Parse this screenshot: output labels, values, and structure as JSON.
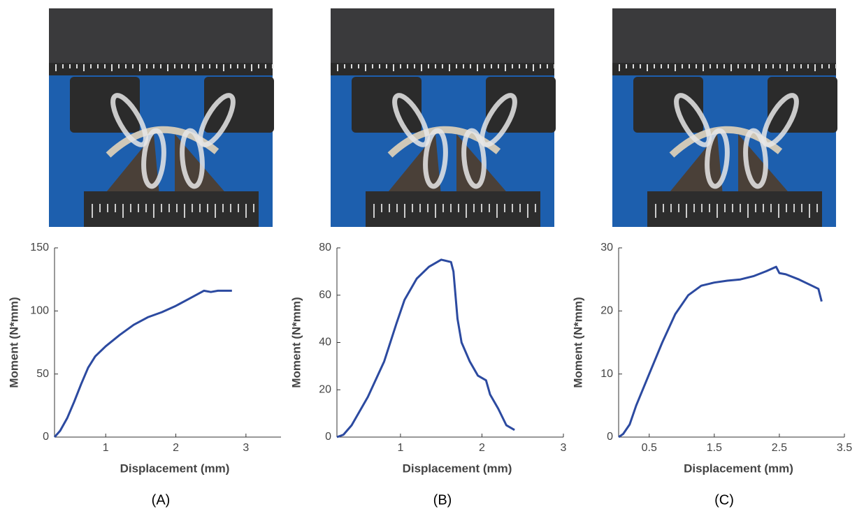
{
  "chart_data": [
    {
      "type": "line",
      "panel_label": "(A)",
      "x_label": "Displacement (mm)",
      "y_label": "Moment (N*mm)",
      "xlim": [
        0.27,
        3.5
      ],
      "ylim": [
        0,
        150
      ],
      "xticks": [
        1,
        2,
        3
      ],
      "yticks": [
        0,
        50,
        100,
        150
      ],
      "series": [
        {
          "color": "#2c4aa0",
          "x": [
            0.27,
            0.35,
            0.45,
            0.55,
            0.65,
            0.75,
            0.85,
            1.0,
            1.2,
            1.4,
            1.6,
            1.8,
            2.0,
            2.2,
            2.4,
            2.5,
            2.6,
            2.8
          ],
          "values": [
            0,
            5,
            15,
            28,
            42,
            55,
            64,
            72,
            81,
            89,
            95,
            99,
            104,
            110,
            116,
            115,
            116,
            116
          ]
        }
      ]
    },
    {
      "type": "line",
      "panel_label": "(B)",
      "x_label": "Displacement (mm)",
      "y_label": "Moment (N*mm)",
      "xlim": [
        0.22,
        3
      ],
      "ylim": [
        0,
        80
      ],
      "xticks": [
        1,
        2,
        3
      ],
      "yticks": [
        0,
        20,
        40,
        60,
        80
      ],
      "series": [
        {
          "color": "#2c4aa0",
          "x": [
            0.22,
            0.3,
            0.4,
            0.6,
            0.8,
            0.95,
            1.05,
            1.2,
            1.35,
            1.5,
            1.62,
            1.65,
            1.7,
            1.75,
            1.85,
            1.95,
            2.05,
            2.1,
            2.2,
            2.3,
            2.4
          ],
          "values": [
            0,
            1,
            5,
            17,
            32,
            48,
            58,
            67,
            72,
            75,
            74,
            70,
            50,
            40,
            32,
            26,
            24,
            18,
            12,
            5,
            3
          ]
        }
      ]
    },
    {
      "type": "line",
      "panel_label": "(C)",
      "x_label": "Displacement (mm)",
      "y_label": "Moment (N*mm)",
      "xlim": [
        0.03,
        3.5
      ],
      "ylim": [
        0,
        30
      ],
      "xticks": [
        0.5,
        1.5,
        2.5,
        3.5
      ],
      "yticks": [
        0,
        10,
        20,
        30
      ],
      "series": [
        {
          "color": "#2c4aa0",
          "x": [
            0.03,
            0.1,
            0.2,
            0.3,
            0.5,
            0.7,
            0.9,
            1.1,
            1.3,
            1.5,
            1.7,
            1.9,
            2.1,
            2.3,
            2.45,
            2.5,
            2.6,
            2.8,
            3.0,
            3.1,
            3.15
          ],
          "values": [
            0,
            0.5,
            2,
            5,
            10,
            15,
            19.5,
            22.5,
            24,
            24.5,
            24.8,
            25,
            25.5,
            26.3,
            27,
            26,
            25.8,
            25,
            24,
            23.5,
            21.5
          ]
        }
      ]
    }
  ]
}
